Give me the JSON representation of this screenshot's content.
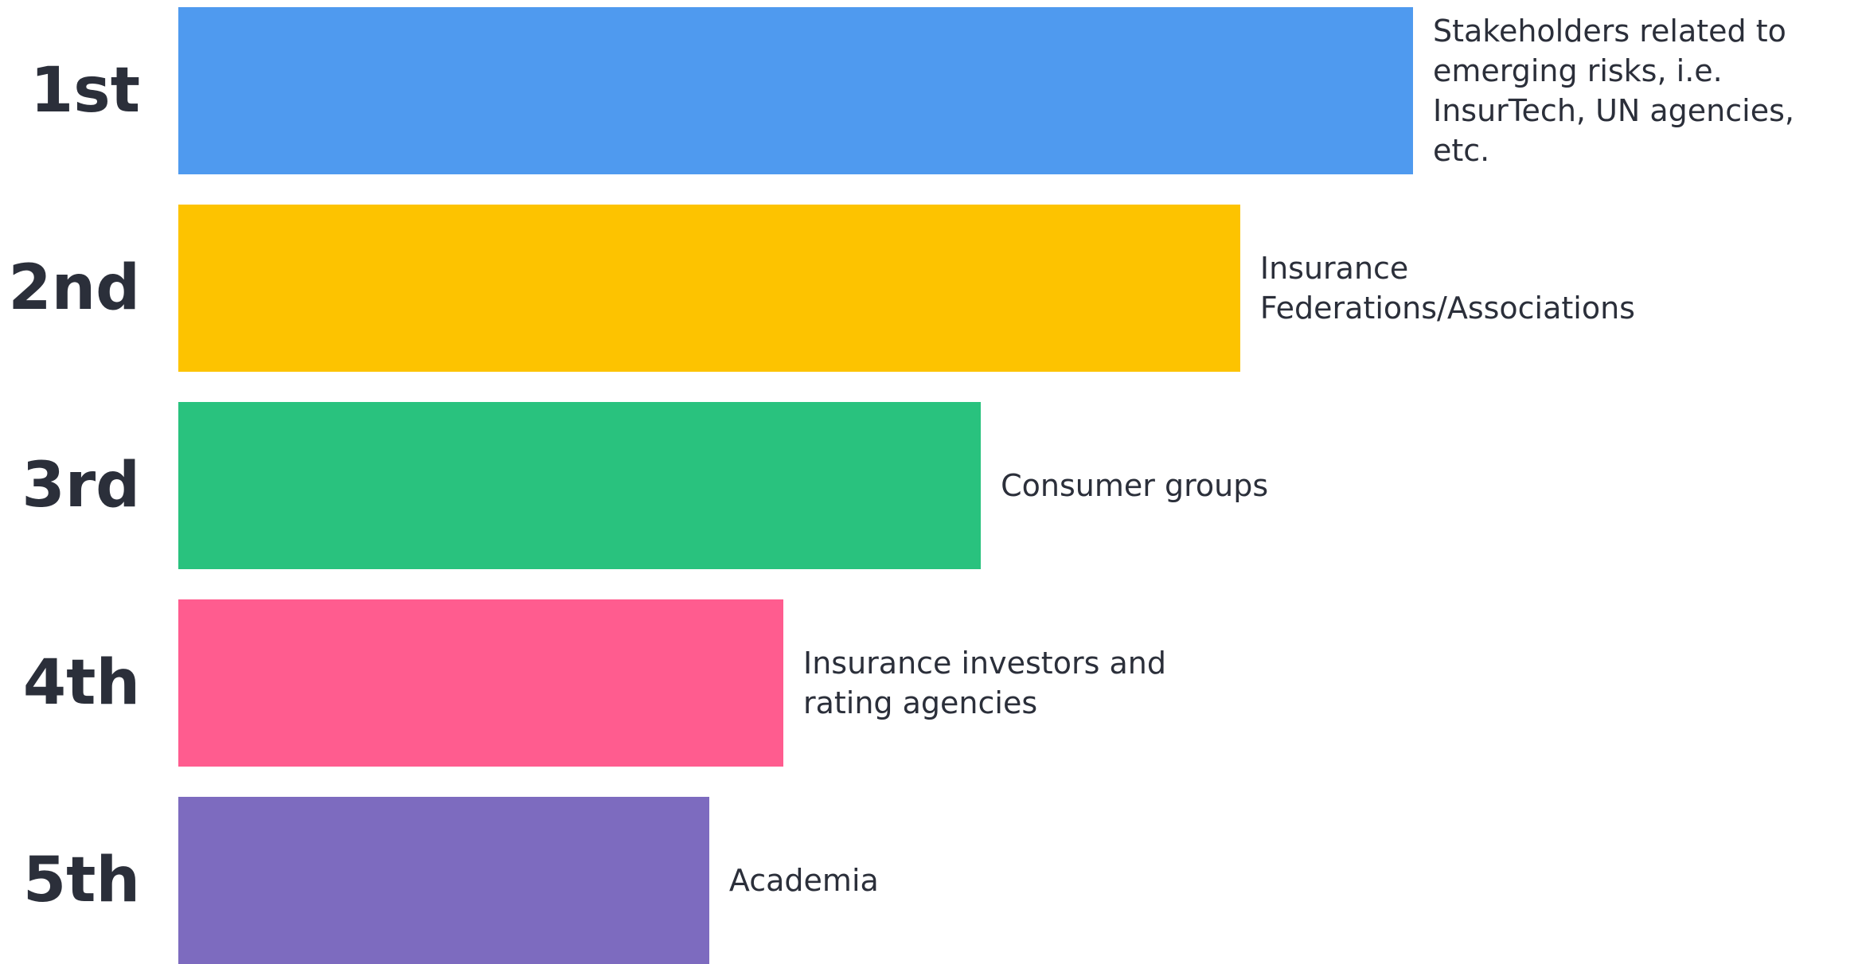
{
  "chart_data": {
    "type": "bar",
    "orientation": "horizontal",
    "categories": [
      "1st",
      "2nd",
      "3rd",
      "4th",
      "5th"
    ],
    "labels": [
      "Stakeholders related to emerging risks, i.e. InsurTech, UN agencies, etc.",
      "Insurance Federations/Associations",
      "Consumer groups",
      "Insurance investors and rating agencies",
      "Academia"
    ],
    "values": [
      100,
      86,
      65,
      49,
      43
    ],
    "colors": [
      "#4f9aef",
      "#fdc300",
      "#29c27e",
      "#ff5c8f",
      "#7d6bbf"
    ],
    "xlim": [
      0,
      100
    ]
  }
}
